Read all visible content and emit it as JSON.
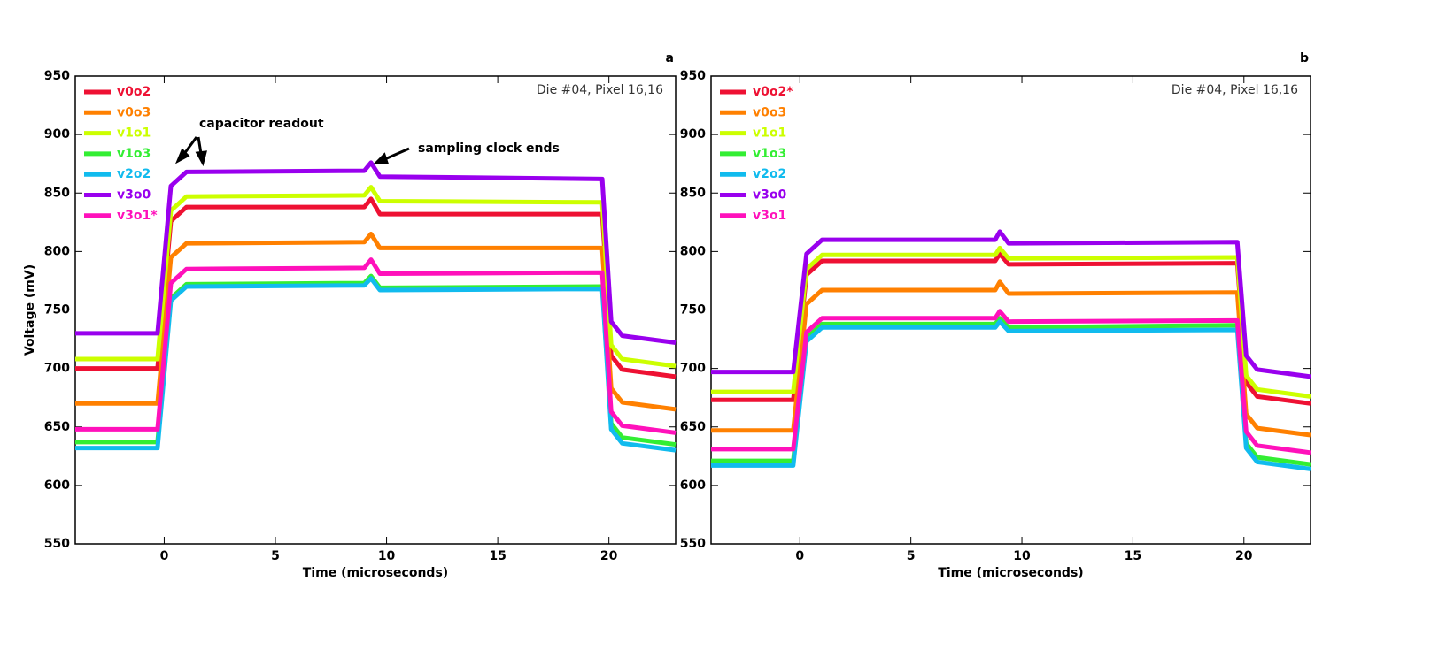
{
  "chart_data": [
    {
      "type": "line",
      "panel_label": "a",
      "note": "Die #04, Pixel 16,16",
      "xlabel": "Time (microseconds)",
      "ylabel": "Voltage (mV)",
      "annotations": [
        "capacitor readout",
        "sampling clock ends"
      ],
      "xlim": [
        -4,
        23
      ],
      "ylim": [
        550,
        950
      ],
      "xticks": [
        0,
        5,
        10,
        15,
        20
      ],
      "yticks": [
        550,
        600,
        650,
        700,
        750,
        800,
        850,
        900,
        950
      ],
      "x": [
        -4,
        -0.3,
        0.3,
        1,
        9,
        9.3,
        9.7,
        19.7,
        20.1,
        20.6,
        23
      ],
      "series": [
        {
          "name": "v0o2",
          "color": "#ee1133",
          "values": [
            700,
            700,
            826,
            838,
            838,
            845,
            832,
            832,
            711,
            699,
            693
          ]
        },
        {
          "name": "v0o3",
          "color": "#ff8000",
          "values": [
            670,
            670,
            795,
            807,
            808,
            815,
            803,
            803,
            683,
            671,
            665
          ]
        },
        {
          "name": "v1o1",
          "color": "#ccff00",
          "values": [
            708,
            708,
            835,
            847,
            848,
            855,
            843,
            842,
            720,
            708,
            702
          ]
        },
        {
          "name": "v1o3",
          "color": "#33ee33",
          "values": [
            637,
            637,
            760,
            772,
            773,
            779,
            769,
            770,
            653,
            641,
            635
          ]
        },
        {
          "name": "v2o2",
          "color": "#11bbee",
          "values": [
            632,
            632,
            758,
            770,
            771,
            777,
            767,
            768,
            648,
            636,
            630
          ]
        },
        {
          "name": "v3o0",
          "color": "#9900ee",
          "values": [
            730,
            730,
            856,
            868,
            869,
            876,
            864,
            862,
            740,
            728,
            722
          ]
        },
        {
          "name": "v3o1*",
          "color": "#ff11bb",
          "values": [
            648,
            648,
            773,
            785,
            786,
            793,
            781,
            782,
            663,
            651,
            645
          ]
        }
      ]
    },
    {
      "type": "line",
      "panel_label": "b",
      "note": "Die #04, Pixel 16,16",
      "xlabel": "Time (microseconds)",
      "xlim": [
        -4,
        23
      ],
      "ylim": [
        550,
        950
      ],
      "xticks": [
        0,
        5,
        10,
        15,
        20
      ],
      "yticks": [
        550,
        600,
        650,
        700,
        750,
        800,
        850,
        900,
        950
      ],
      "x": [
        -4,
        -0.3,
        0.3,
        1,
        8.8,
        9,
        9.4,
        19.7,
        20.1,
        20.6,
        23
      ],
      "series": [
        {
          "name": "v0o2*",
          "color": "#ee1133",
          "values": [
            673,
            673,
            780,
            792,
            792,
            798,
            789,
            790,
            688,
            676,
            670
          ]
        },
        {
          "name": "v0o3",
          "color": "#ff8000",
          "values": [
            647,
            647,
            755,
            767,
            767,
            774,
            764,
            765,
            661,
            649,
            643
          ]
        },
        {
          "name": "v1o1",
          "color": "#ccff00",
          "values": [
            680,
            680,
            785,
            797,
            797,
            803,
            794,
            795,
            694,
            682,
            676
          ]
        },
        {
          "name": "v1o3",
          "color": "#33ee33",
          "values": [
            621,
            621,
            726,
            738,
            738,
            743,
            735,
            737,
            636,
            624,
            618
          ]
        },
        {
          "name": "v2o2",
          "color": "#11bbee",
          "values": [
            617,
            617,
            723,
            735,
            735,
            740,
            732,
            733,
            632,
            620,
            614
          ]
        },
        {
          "name": "v3o0",
          "color": "#9900ee",
          "values": [
            697,
            697,
            798,
            810,
            810,
            817,
            807,
            808,
            711,
            699,
            693
          ]
        },
        {
          "name": "v3o1",
          "color": "#ff11bb",
          "values": [
            631,
            631,
            731,
            743,
            743,
            749,
            740,
            741,
            646,
            634,
            628
          ]
        }
      ]
    }
  ]
}
